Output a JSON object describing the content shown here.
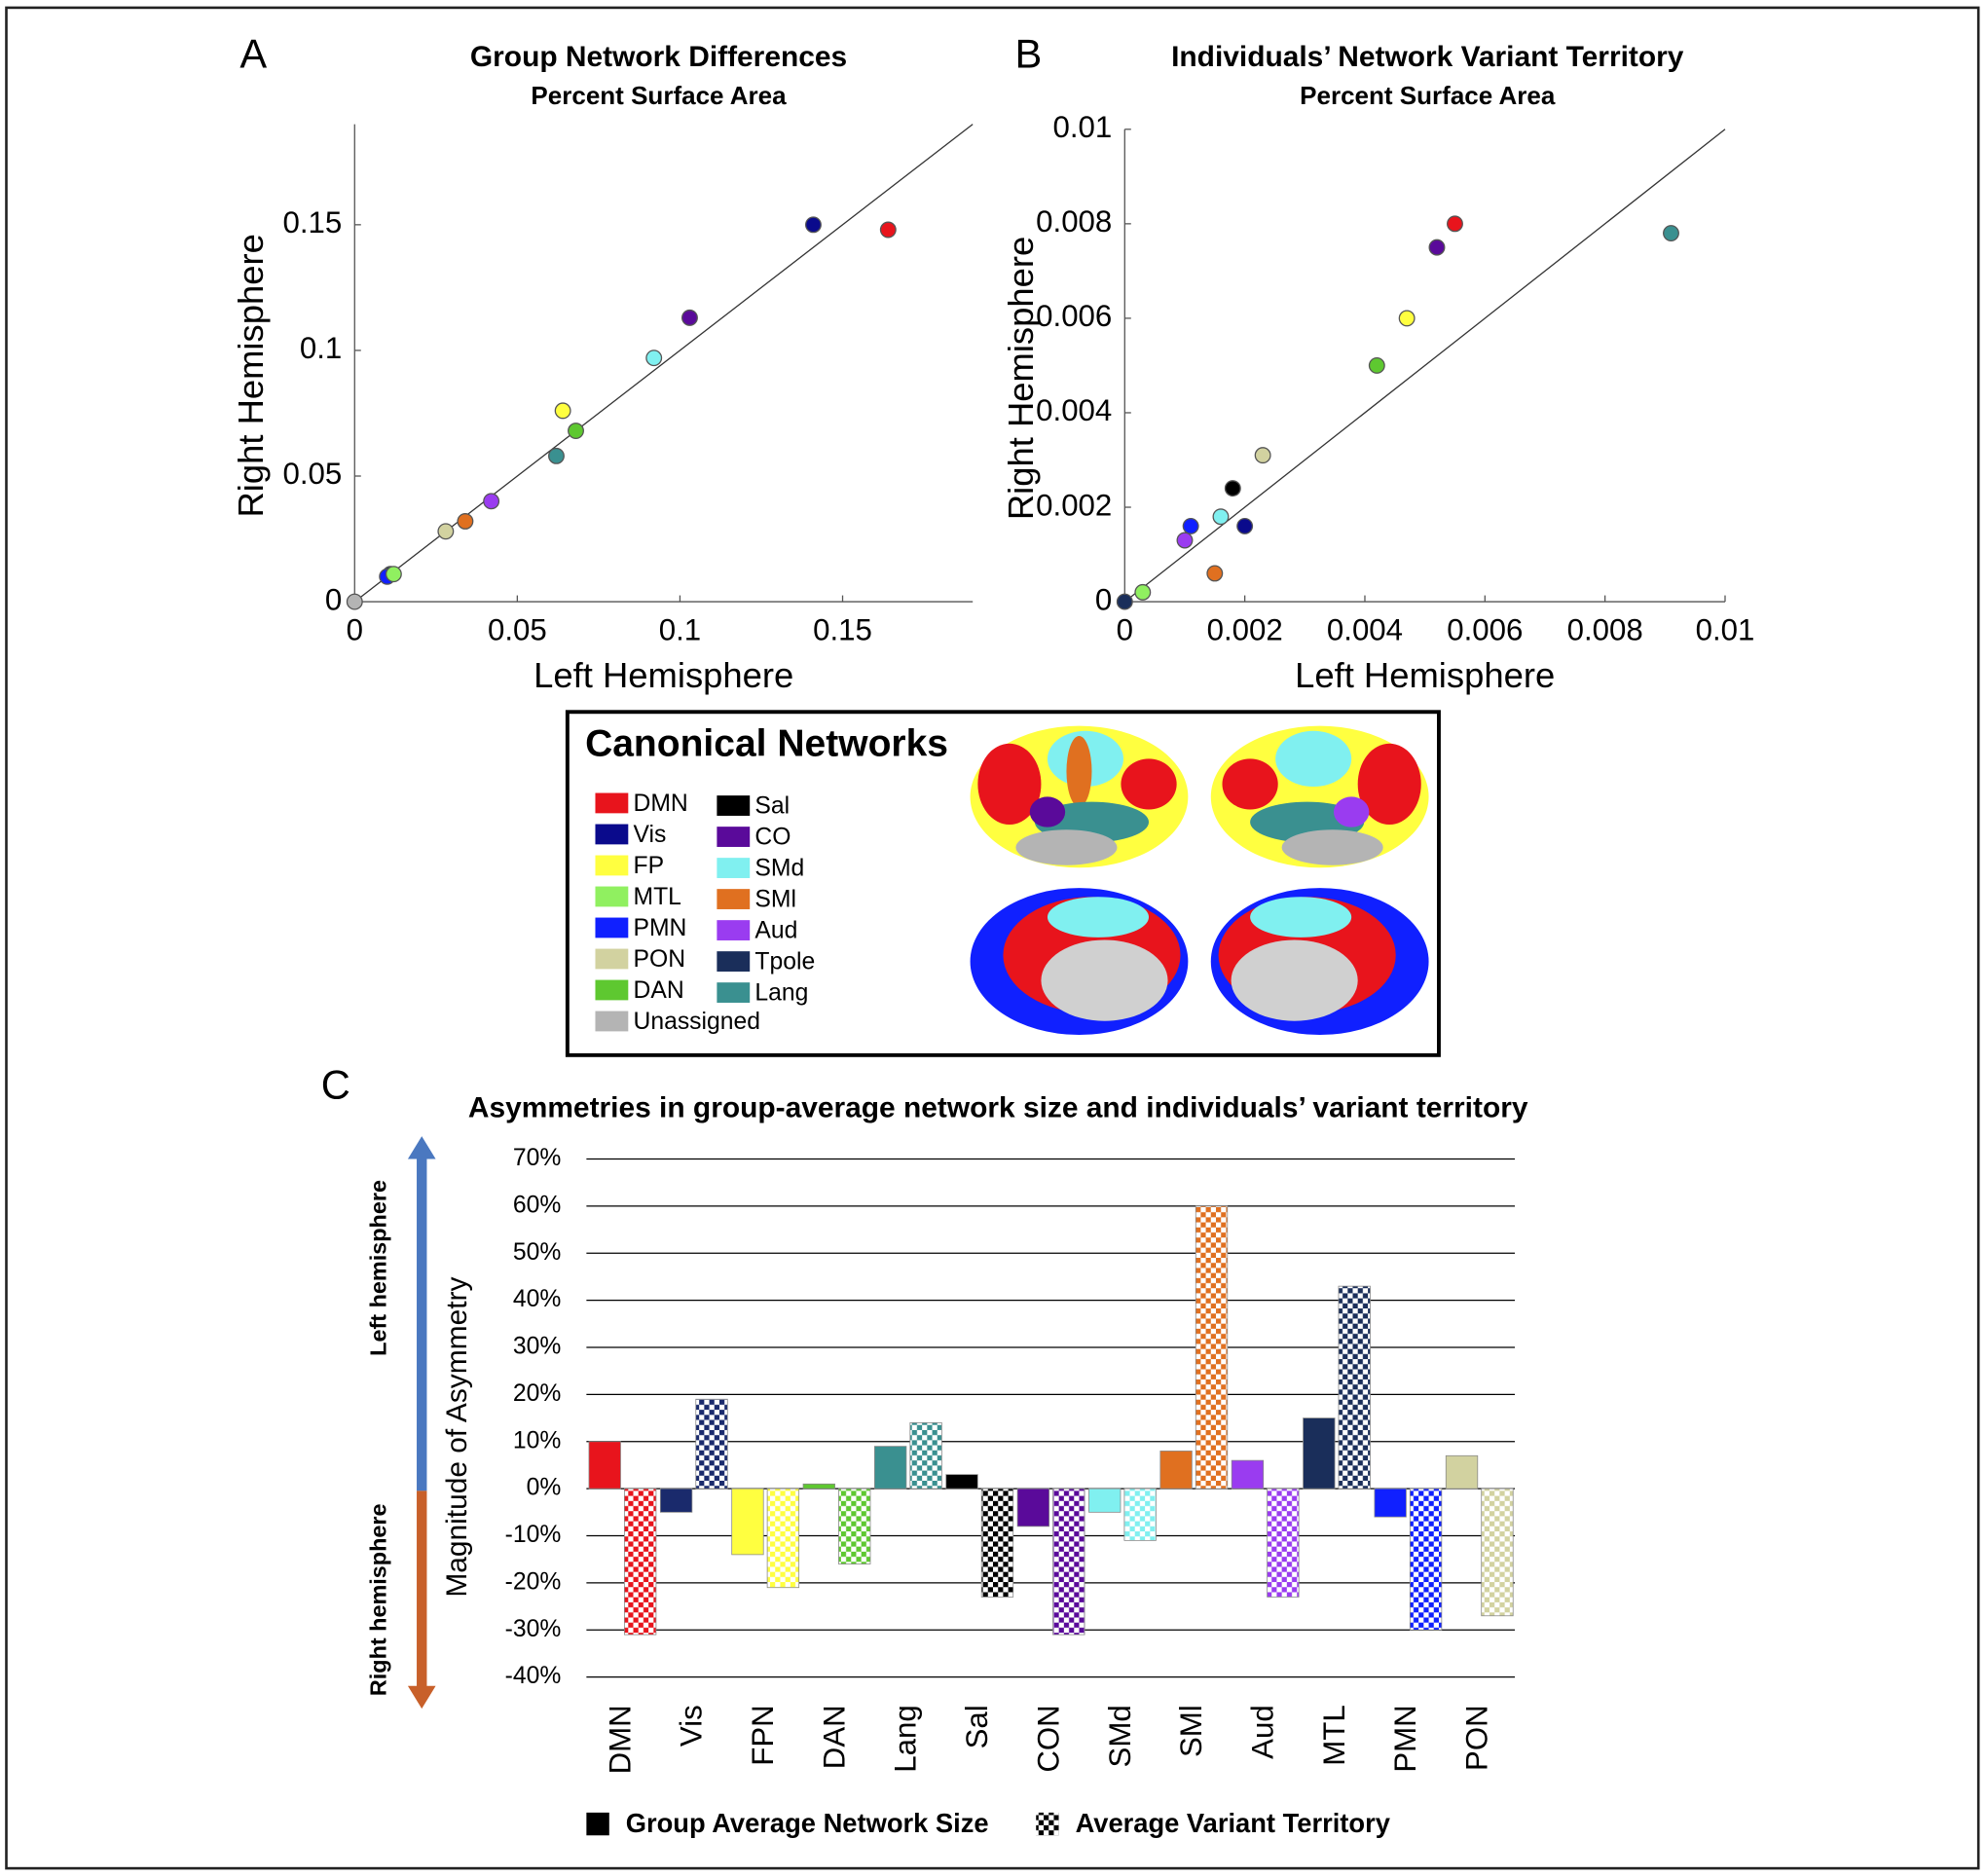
{
  "panel_labels": [
    "A",
    "B",
    "C"
  ],
  "legend": {
    "title": "Canonical Networks",
    "items": [
      {
        "name": "DMN",
        "color": "#e8141c"
      },
      {
        "name": "Vis",
        "color": "#0a0a8c"
      },
      {
        "name": "FP",
        "color": "#ffff40"
      },
      {
        "name": "MTL",
        "color": "#90f060"
      },
      {
        "name": "PMN",
        "color": "#1020ff"
      },
      {
        "name": "PON",
        "color": "#d2d2a0"
      },
      {
        "name": "DAN",
        "color": "#5ec830"
      },
      {
        "name": "Unassigned",
        "color": "#b4b4b4"
      },
      {
        "name": "Sal",
        "color": "#000000"
      },
      {
        "name": "CO",
        "color": "#5a0a9a"
      },
      {
        "name": "SMd",
        "color": "#80f0f0"
      },
      {
        "name": "SMl",
        "color": "#e07020"
      },
      {
        "name": "Aud",
        "color": "#9a3cf0"
      },
      {
        "name": "Tpole",
        "color": "#1a2e5a"
      },
      {
        "name": "Lang",
        "color": "#3a9090"
      }
    ]
  },
  "chart_data": [
    {
      "type": "scatter",
      "title": "Group Network Differences",
      "subtitle": "Percent Surface Area",
      "x_label": "Left Hemisphere",
      "y_label": "Right Hemisphere",
      "x": [
        0.164,
        0.141,
        0.103,
        0.092,
        0.064,
        0.068,
        0.062,
        0.042,
        0.034,
        0.028,
        0.011,
        0.01,
        0.012,
        0.0
      ],
      "values": [
        0.148,
        0.15,
        0.113,
        0.097,
        0.076,
        0.068,
        0.058,
        0.04,
        0.032,
        0.028,
        0.011,
        0.01,
        0.011,
        0.0
      ],
      "colors": [
        "#e8141c",
        "#0a0a8c",
        "#5a0a9a",
        "#80f0f0",
        "#ffff40",
        "#5ec830",
        "#3a9090",
        "#9a3cf0",
        "#e07020",
        "#d2d2a0",
        "#1a2e5a",
        "#1020ff",
        "#90f060",
        "#b4b4b4"
      ],
      "xlim": [
        0,
        0.19
      ],
      "ylim": [
        0,
        0.19
      ],
      "xticks": [
        0,
        0.05,
        0.1,
        0.15
      ],
      "yticks": [
        0,
        0.05,
        0.1,
        0.15
      ],
      "identity_line": true
    },
    {
      "type": "scatter",
      "title": "Individuals’ Network Variant Territory",
      "subtitle": "Percent Surface Area",
      "x_label": "Left Hemisphere",
      "y_label": "Right Hemisphere",
      "x": [
        0.0055,
        0.0052,
        0.0091,
        0.0047,
        0.0042,
        0.0023,
        0.0018,
        0.0016,
        0.002,
        0.0011,
        0.001,
        0.0015,
        0.0003,
        0.0
      ],
      "values": [
        0.008,
        0.0075,
        0.0078,
        0.006,
        0.005,
        0.0031,
        0.0024,
        0.0018,
        0.0016,
        0.0016,
        0.0013,
        0.0006,
        0.0002,
        0.0
      ],
      "colors": [
        "#e8141c",
        "#5a0a9a",
        "#3a9090",
        "#ffff40",
        "#5ec830",
        "#d2d2a0",
        "#000000",
        "#80f0f0",
        "#0a0a8c",
        "#1020ff",
        "#9a3cf0",
        "#e07020",
        "#90f060",
        "#1a2e5a"
      ],
      "xlim": [
        0,
        0.01
      ],
      "ylim": [
        0,
        0.01
      ],
      "xticks": [
        0,
        0.002,
        0.004,
        0.006,
        0.008,
        0.01
      ],
      "yticks": [
        0,
        0.002,
        0.004,
        0.006,
        0.008,
        0.01
      ],
      "identity_line": true
    },
    {
      "type": "bar",
      "title": "Asymmetries in group-average network size and individuals’ variant territory",
      "y_label": "Magnitude of Asymmetry",
      "annotations": [
        "Left hemisphere",
        "Right hemisphere"
      ],
      "categories": [
        "DMN",
        "Vis",
        "FPN",
        "DAN",
        "Lang",
        "Sal",
        "CON",
        "SMd",
        "SMl",
        "Aud",
        "MTL",
        "PMN",
        "PON"
      ],
      "colors": [
        "#e8141c",
        "#1a2a6c",
        "#ffff40",
        "#5ec830",
        "#3a9090",
        "#000000",
        "#5a0a9a",
        "#80f0f0",
        "#e07020",
        "#9a3cf0",
        "#1a2e5a",
        "#1020ff",
        "#d2d2a0"
      ],
      "series": [
        {
          "name": "Group Average Network Size",
          "pattern": "solid",
          "values": [
            10,
            -5,
            -14,
            1,
            9,
            3,
            -8,
            -5,
            8,
            6,
            15,
            -6,
            7
          ]
        },
        {
          "name": "Average Variant Territory",
          "pattern": "checkered",
          "values": [
            -31,
            19,
            -21,
            -16,
            14,
            -23,
            -31,
            -11,
            60,
            -23,
            43,
            -30,
            -27
          ]
        }
      ],
      "ylim": [
        -40,
        70
      ],
      "yticks": [
        {
          "value": 70,
          "label": "70%"
        },
        {
          "value": 60,
          "label": "60%"
        },
        {
          "value": 50,
          "label": "50%"
        },
        {
          "value": 40,
          "label": "40%"
        },
        {
          "value": 30,
          "label": "30%"
        },
        {
          "value": 20,
          "label": "20%"
        },
        {
          "value": 10,
          "label": "10%"
        },
        {
          "value": 0,
          "label": "0%"
        },
        {
          "value": -10,
          "label": "-10%"
        },
        {
          "value": -20,
          "label": "-20%"
        },
        {
          "value": -30,
          "label": "-30%"
        },
        {
          "value": -40,
          "label": "-40%"
        }
      ],
      "grid": true
    }
  ]
}
